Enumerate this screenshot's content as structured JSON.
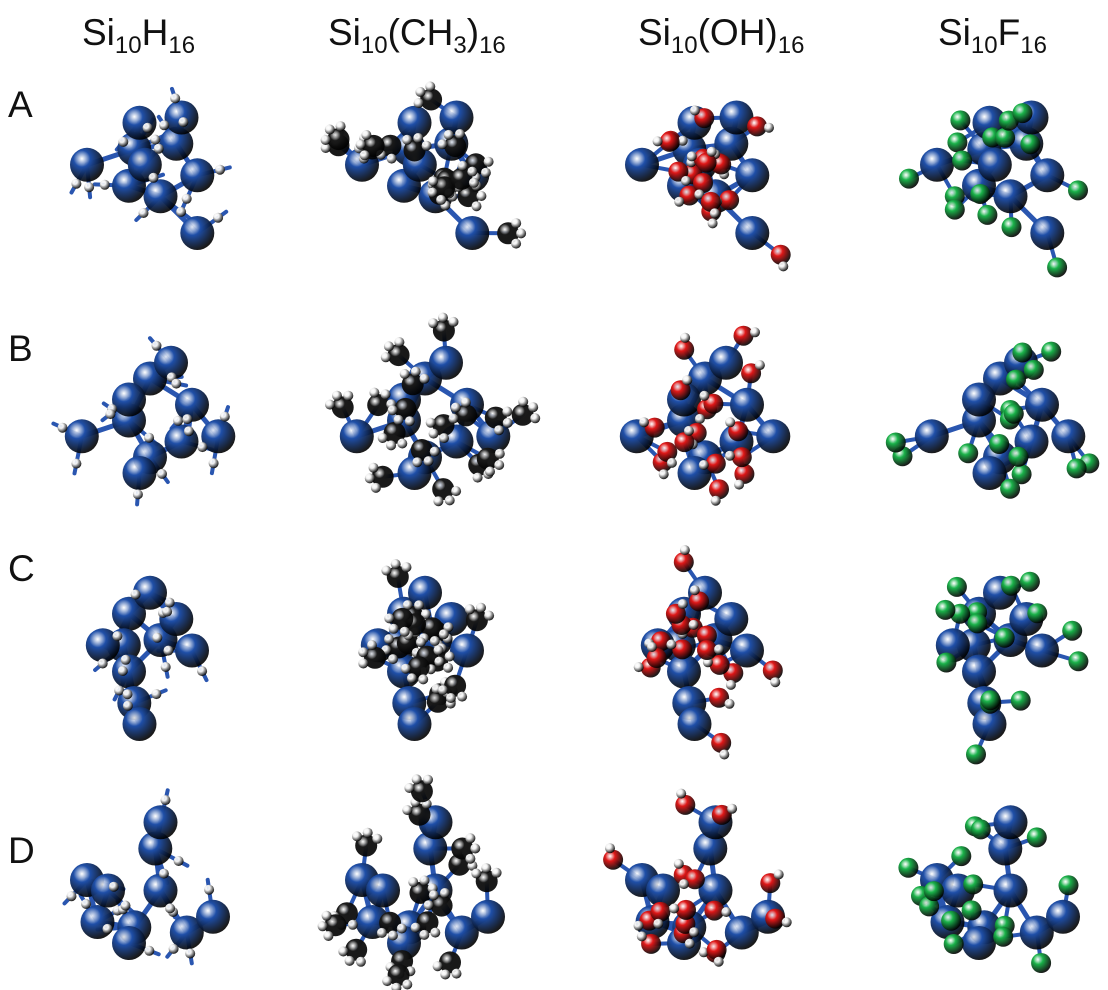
{
  "columns": [
    {
      "base": "Si",
      "sub1": "10",
      "mid": "H",
      "sub2": "16",
      "tail": ""
    },
    {
      "base": "Si",
      "sub1": "10",
      "mid": "(CH",
      "sub2": "3",
      "tail": ")",
      "sub3": "16"
    },
    {
      "base": "Si",
      "sub1": "10",
      "mid": "(OH)",
      "sub2": "16",
      "tail": ""
    },
    {
      "base": "Si",
      "sub1": "10",
      "mid": "F",
      "sub2": "16",
      "tail": ""
    }
  ],
  "rows": [
    "A",
    "B",
    "C",
    "D"
  ],
  "colors": {
    "si": "#1f4fa8",
    "h": "#f2f2f2",
    "c": "#1a1a1a",
    "o": "#e01818",
    "f": "#1bb34a",
    "bond": "#2a56b0"
  }
}
